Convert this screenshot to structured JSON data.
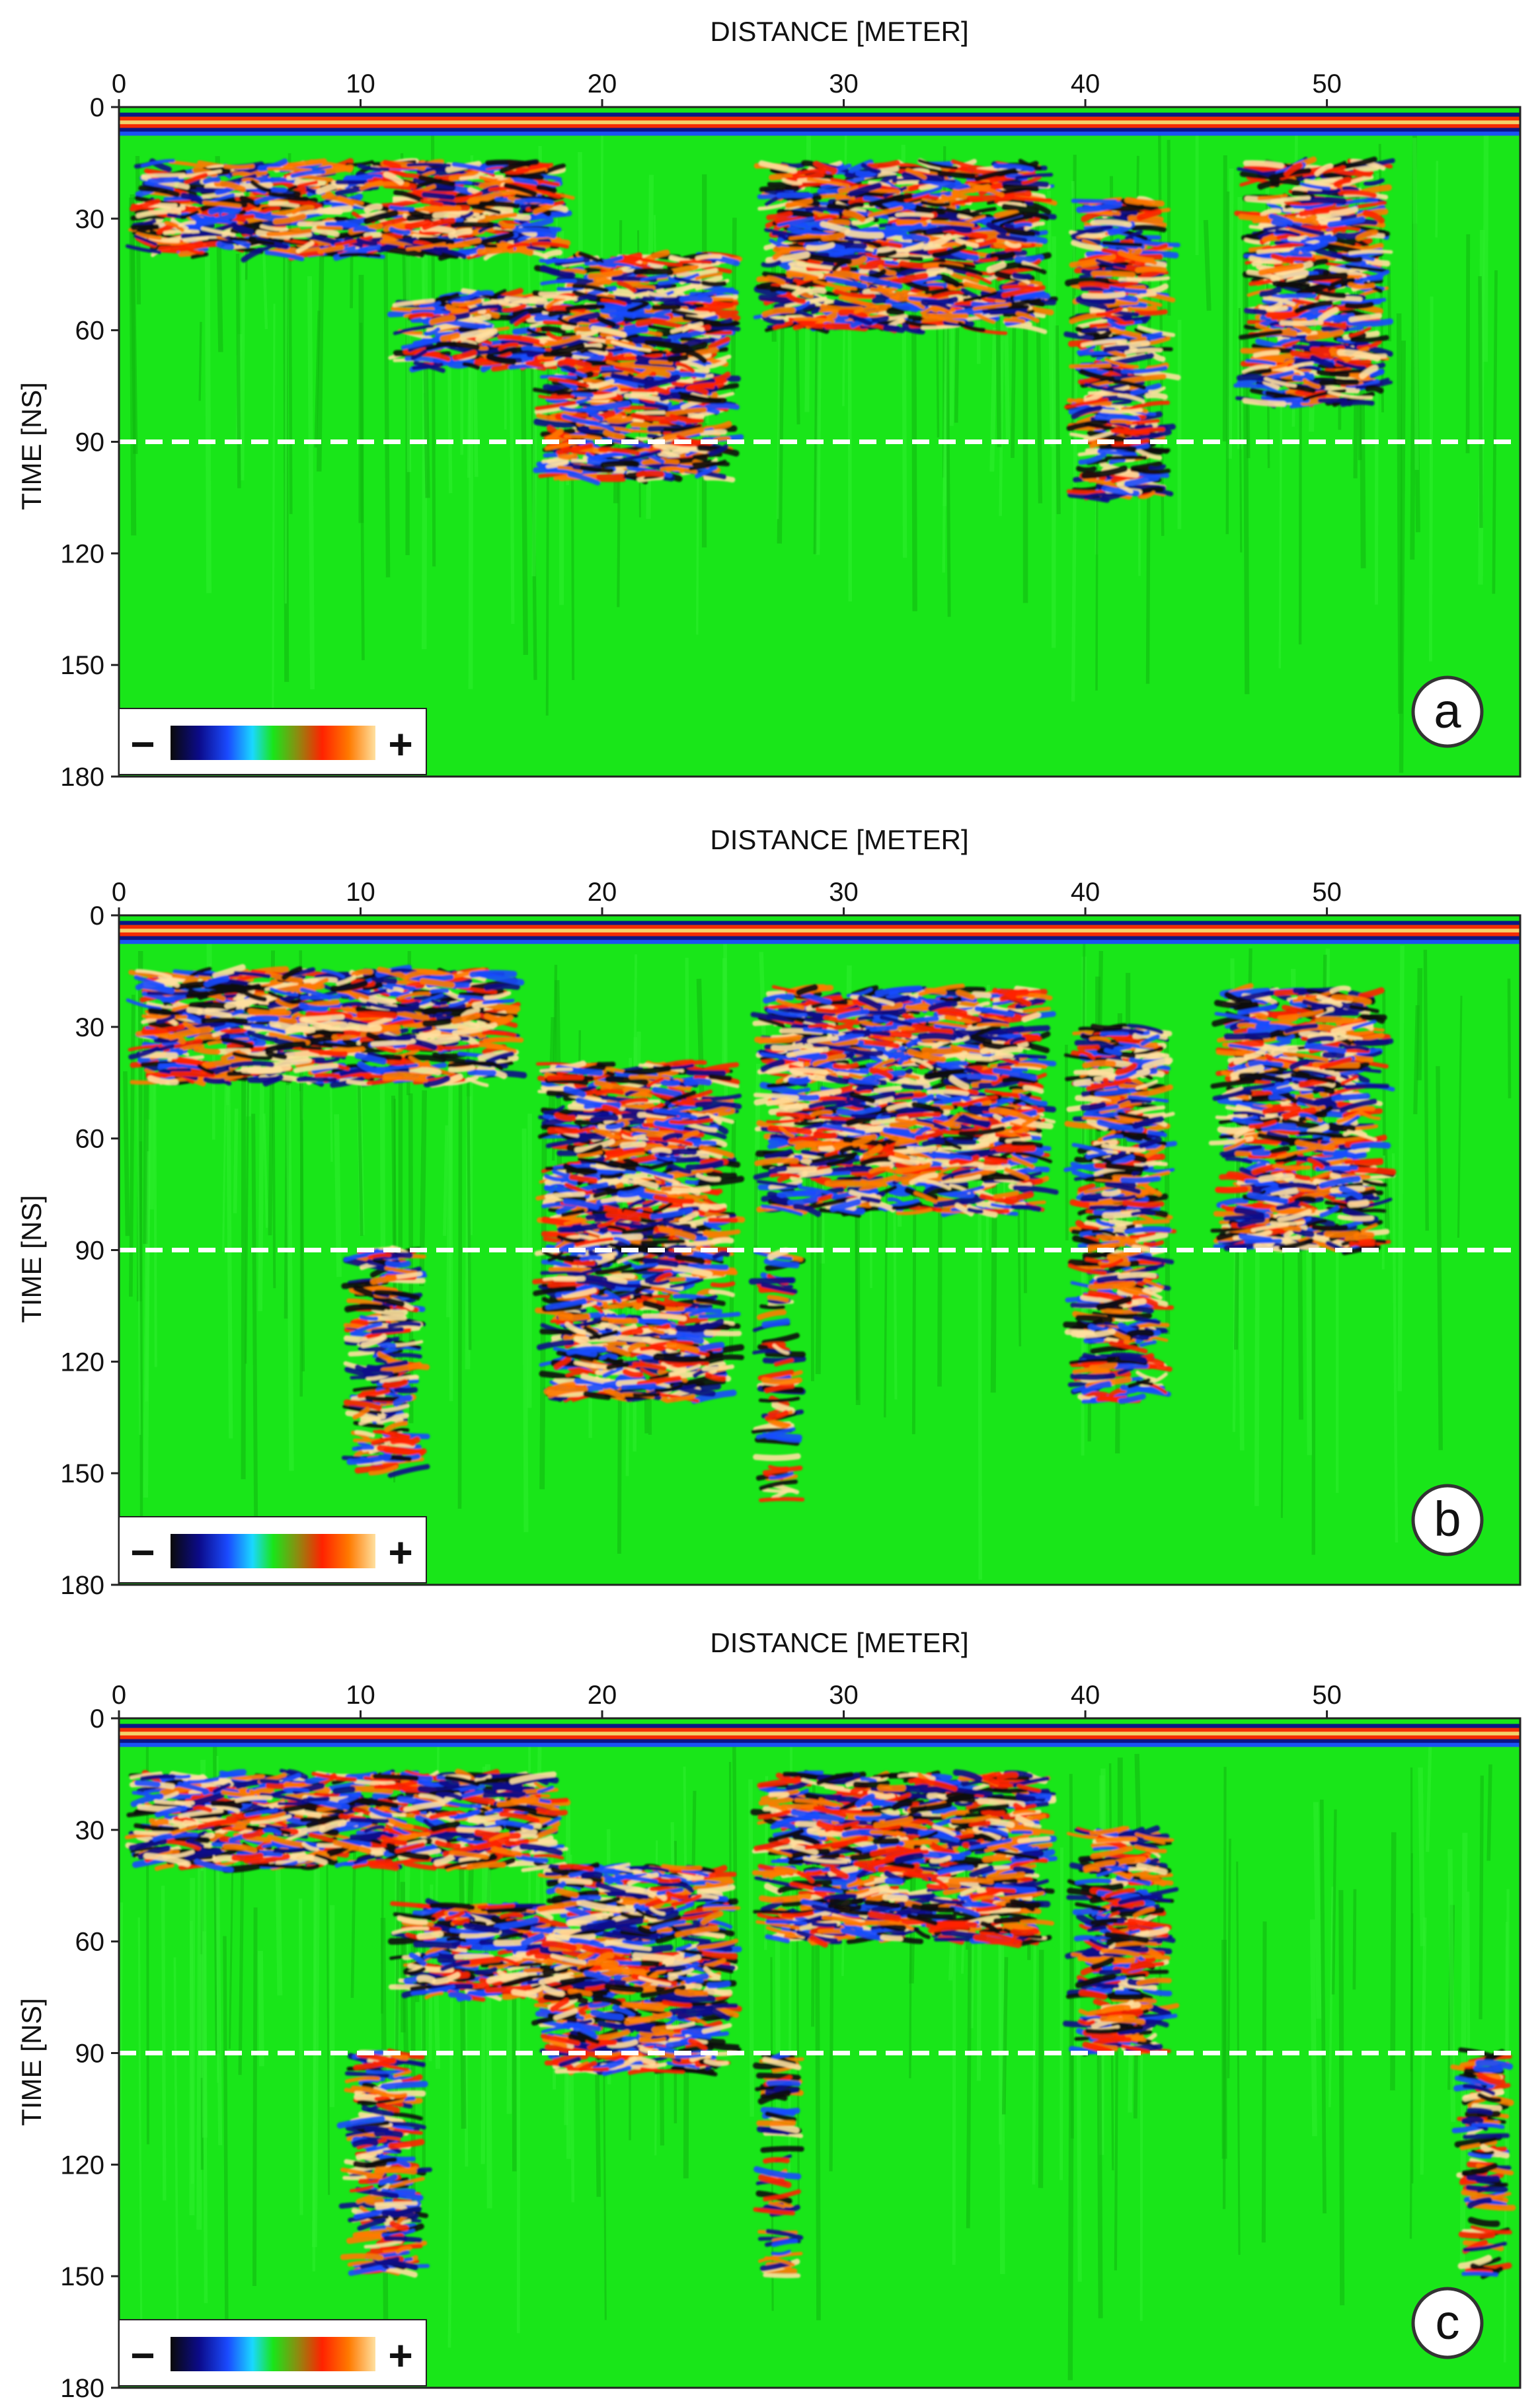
{
  "colors": {
    "background_green": "#19e619",
    "reference_line": "#ffffff",
    "colorscale": [
      "#0a0a0a",
      "#0b0b8a",
      "#1a4bff",
      "#1ad8ff",
      "#19e619",
      "#8c8c10",
      "#ff2200",
      "#ff7a00",
      "#ffe0a0"
    ]
  },
  "chart_data": [
    {
      "type": "heatmap",
      "panel": "a",
      "xlabel": "DISTANCE [METER]",
      "ylabel": "TIME [NS]",
      "xlim": [
        0,
        58
      ],
      "ylim": [
        0,
        180
      ],
      "y_inverted": true,
      "x_ticks": [
        "0",
        "10",
        "20",
        "30",
        "40",
        "50"
      ],
      "y_ticks": [
        "0",
        "30",
        "60",
        "90",
        "120",
        "150",
        "180"
      ],
      "reference_line_time": 90,
      "legend_minus": "−",
      "legend_plus": "+",
      "reflection_zones": [
        {
          "x": [
            1,
            18
          ],
          "t": [
            15,
            40
          ]
        },
        {
          "x": [
            12,
            18
          ],
          "t": [
            50,
            70
          ]
        },
        {
          "x": [
            18,
            25
          ],
          "t": [
            40,
            100
          ]
        },
        {
          "x": [
            27,
            38
          ],
          "t": [
            15,
            60
          ]
        },
        {
          "x": [
            40,
            43
          ],
          "t": [
            25,
            105
          ]
        },
        {
          "x": [
            47,
            52
          ],
          "t": [
            15,
            80
          ]
        }
      ]
    },
    {
      "type": "heatmap",
      "panel": "b",
      "xlabel": "DISTANCE [METER]",
      "ylabel": "TIME [NS]",
      "xlim": [
        0,
        58
      ],
      "ylim": [
        0,
        180
      ],
      "y_inverted": true,
      "x_ticks": [
        "0",
        "10",
        "20",
        "30",
        "40",
        "50"
      ],
      "y_ticks": [
        "0",
        "30",
        "60",
        "90",
        "120",
        "150",
        "180"
      ],
      "reference_line_time": 90,
      "legend_minus": "−",
      "legend_plus": "+",
      "reflection_zones": [
        {
          "x": [
            1,
            16
          ],
          "t": [
            15,
            45
          ]
        },
        {
          "x": [
            18,
            25
          ],
          "t": [
            40,
            130
          ]
        },
        {
          "x": [
            27,
            38
          ],
          "t": [
            20,
            80
          ]
        },
        {
          "x": [
            40,
            43
          ],
          "t": [
            30,
            130
          ]
        },
        {
          "x": [
            46,
            52
          ],
          "t": [
            20,
            90
          ]
        },
        {
          "x": [
            10,
            12
          ],
          "t": [
            90,
            150
          ]
        },
        {
          "x": [
            27,
            27.6
          ],
          "t": [
            90,
            160
          ]
        }
      ]
    },
    {
      "type": "heatmap",
      "panel": "c",
      "xlabel": "DISTANCE [METER]",
      "ylabel": "TIME [NS]",
      "xlim": [
        0,
        58
      ],
      "ylim": [
        0,
        180
      ],
      "y_inverted": true,
      "x_ticks": [
        "0",
        "10",
        "20",
        "30",
        "40",
        "50"
      ],
      "y_ticks": [
        "0",
        "30",
        "60",
        "90",
        "120",
        "150",
        "180"
      ],
      "reference_line_time": 90,
      "legend_minus": "−",
      "legend_plus": "+",
      "reflection_zones": [
        {
          "x": [
            1,
            18
          ],
          "t": [
            15,
            40
          ]
        },
        {
          "x": [
            12,
            18
          ],
          "t": [
            50,
            75
          ]
        },
        {
          "x": [
            18,
            25
          ],
          "t": [
            40,
            95
          ]
        },
        {
          "x": [
            27,
            38
          ],
          "t": [
            15,
            60
          ]
        },
        {
          "x": [
            40,
            43
          ],
          "t": [
            30,
            90
          ]
        },
        {
          "x": [
            10,
            12
          ],
          "t": [
            90,
            150
          ]
        },
        {
          "x": [
            27,
            27.6
          ],
          "t": [
            90,
            150
          ]
        },
        {
          "x": [
            56,
            57
          ],
          "t": [
            90,
            150
          ]
        }
      ]
    }
  ]
}
